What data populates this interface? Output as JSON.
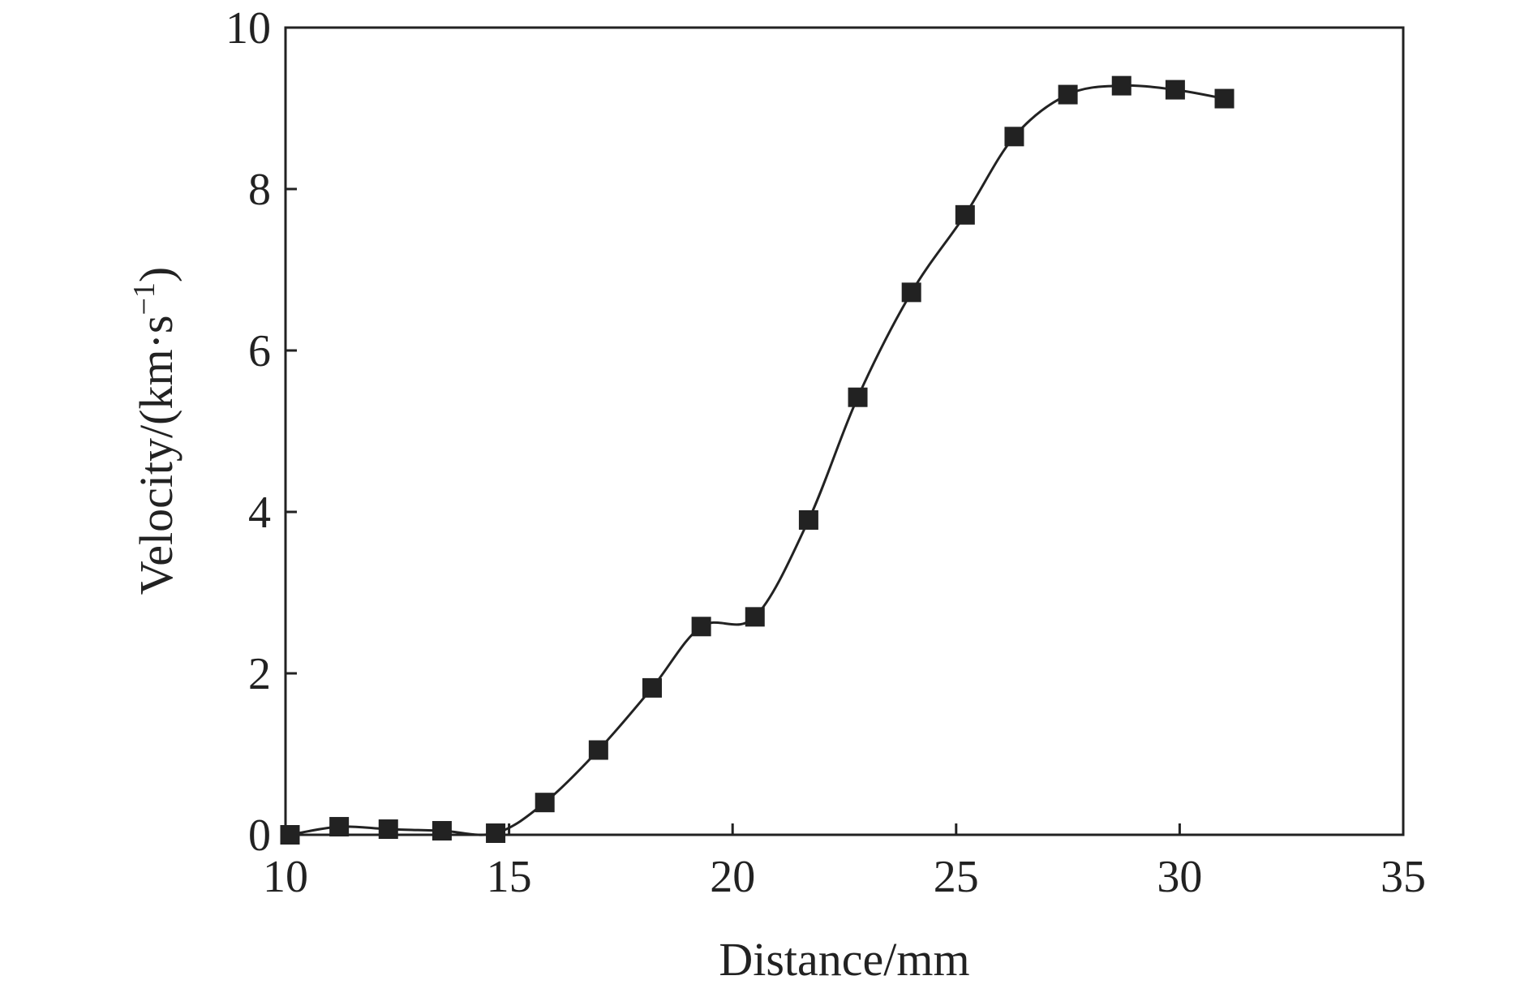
{
  "chart_data": {
    "type": "line",
    "title": "",
    "xlabel": "Distance/mm",
    "ylabel": {
      "main": "Velocity/(km·s",
      "sup": "−1",
      "close": ")"
    },
    "xlim": [
      10,
      35
    ],
    "ylim": [
      0,
      10
    ],
    "xticks": [
      "10",
      "15",
      "20",
      "25",
      "30",
      "35"
    ],
    "yticks": [
      "0",
      "2",
      "4",
      "6",
      "8",
      "10"
    ],
    "grid": false,
    "legend": "none",
    "marker": "square",
    "colors": {
      "line": "#222222",
      "marker": "#222222",
      "axes": "#222222"
    },
    "series": [
      {
        "x": [
          10.1,
          11.2,
          12.3,
          13.5,
          14.7,
          15.8,
          17.0,
          18.2,
          19.3,
          20.5,
          21.7,
          22.8,
          24.0,
          25.2,
          26.3,
          27.5,
          28.7,
          29.9,
          31.0
        ],
        "y": [
          0.0,
          0.1,
          0.07,
          0.05,
          0.02,
          0.4,
          1.05,
          1.82,
          2.58,
          2.7,
          3.9,
          5.42,
          6.72,
          7.68,
          8.65,
          9.17,
          9.28,
          9.23,
          9.12
        ]
      }
    ]
  }
}
